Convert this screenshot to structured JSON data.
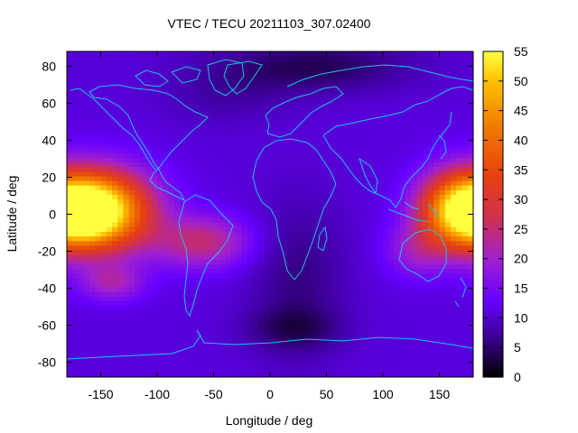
{
  "chart_data": {
    "type": "heatmap",
    "title": "VTEC / TECU 20211103_307.02400",
    "xlabel": "Longitude / deg",
    "ylabel": "Latitude / deg",
    "xlim": [
      -180,
      180
    ],
    "ylim": [
      -88,
      88
    ],
    "x_ticks": [
      -150,
      -100,
      -50,
      0,
      50,
      100,
      150
    ],
    "y_ticks": [
      -80,
      -60,
      -40,
      -20,
      0,
      20,
      40,
      60,
      80
    ],
    "colorbar": {
      "range": [
        0,
        55
      ],
      "ticks": [
        0,
        5,
        10,
        15,
        20,
        25,
        30,
        35,
        40,
        45,
        50,
        55
      ],
      "stops": [
        {
          "value": 0,
          "color": "#000000"
        },
        {
          "value": 7,
          "color": "#3d0098"
        },
        {
          "value": 13,
          "color": "#6600ff"
        },
        {
          "value": 20,
          "color": "#a020d0"
        },
        {
          "value": 27,
          "color": "#d03050"
        },
        {
          "value": 34,
          "color": "#e84010"
        },
        {
          "value": 42,
          "color": "#f07800"
        },
        {
          "value": 50,
          "color": "#ffc000"
        },
        {
          "value": 55,
          "color": "#ffff40"
        }
      ]
    },
    "grid_spacing_deg": {
      "lon": 5,
      "lat": 2.5
    },
    "background_value": 11,
    "features": [
      {
        "name": "pacific-equatorial-crest",
        "lon": -150,
        "lat": 2,
        "value": 43,
        "lon_sigma": 32,
        "lat_sigma": 15
      },
      {
        "name": "pacific-crest-core",
        "lon": -160,
        "lat": 0,
        "value": 10,
        "lon_sigma": 18,
        "lat_sigma": 10
      },
      {
        "name": "west-pacific-crest",
        "lon": 168,
        "lat": 2,
        "value": 36,
        "lon_sigma": 25,
        "lat_sigma": 14
      },
      {
        "name": "south-america-band",
        "lon": -60,
        "lat": -15,
        "value": 14,
        "lon_sigma": 30,
        "lat_sigma": 10
      },
      {
        "name": "south-pacific-patch",
        "lon": -140,
        "lat": -37,
        "value": 10,
        "lon_sigma": 20,
        "lat_sigma": 7
      },
      {
        "name": "australia-band",
        "lon": 130,
        "lat": -20,
        "value": 8,
        "lon_sigma": 20,
        "lat_sigma": 10
      },
      {
        "name": "north-pole-low",
        "lon": 40,
        "lat": 80,
        "value": -7,
        "lon_sigma": 60,
        "lat_sigma": 10
      },
      {
        "name": "africa-trough",
        "lon": 25,
        "lat": -35,
        "value": -5,
        "lon_sigma": 30,
        "lat_sigma": 30
      },
      {
        "name": "south-polar-low",
        "lon": 20,
        "lat": -62,
        "value": -5,
        "lon_sigma": 30,
        "lat_sigma": 8
      },
      {
        "name": "north-atlantic-low",
        "lon": -40,
        "lat": 65,
        "value": -3,
        "lon_sigma": 40,
        "lat_sigma": 12
      }
    ]
  }
}
